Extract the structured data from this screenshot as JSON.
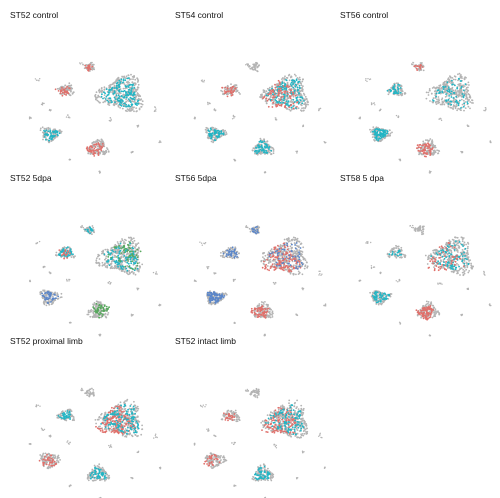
{
  "chart_data": {
    "type": "scatter",
    "layout": "facet grid, 3 columns",
    "axes": "hidden",
    "grid": false,
    "legend": "none",
    "colors": {
      "background_cells": "#b4b4b4",
      "group_red": "#e0706b",
      "group_teal": "#22b5c4",
      "group_blue": "#5b86c9",
      "group_green": "#57a85d"
    },
    "panels": [
      {
        "title": "ST52 control",
        "highlight": [
          {
            "cluster": "big",
            "color": "teal",
            "weight": 0.45
          },
          {
            "cluster": "left",
            "color": "red",
            "weight": 0.45
          },
          {
            "cluster": "lower_left",
            "color": "teal",
            "weight": 0.5
          },
          {
            "cluster": "lower_right",
            "color": "red",
            "weight": 0.45
          },
          {
            "cluster": "top_small",
            "color": "red",
            "weight": 0.5
          }
        ]
      },
      {
        "title": "ST54 control",
        "highlight": [
          {
            "cluster": "big",
            "color": "teal",
            "weight": 0.4
          },
          {
            "cluster": "big",
            "color": "red",
            "weight": 0.25
          },
          {
            "cluster": "left",
            "color": "red",
            "weight": 0.5
          },
          {
            "cluster": "lower_left",
            "color": "teal",
            "weight": 0.55
          },
          {
            "cluster": "lower_right",
            "color": "teal",
            "weight": 0.5
          }
        ]
      },
      {
        "title": "ST56 control",
        "highlight": [
          {
            "cluster": "big",
            "color": "teal",
            "weight": 0.2
          },
          {
            "cluster": "left",
            "color": "teal",
            "weight": 0.5
          },
          {
            "cluster": "lower_left",
            "color": "teal",
            "weight": 0.8
          },
          {
            "cluster": "lower_right",
            "color": "red",
            "weight": 0.5
          },
          {
            "cluster": "top_small",
            "color": "red",
            "weight": 0.35
          }
        ]
      },
      {
        "title": "ST52 5dpa",
        "highlight": [
          {
            "cluster": "big",
            "color": "teal",
            "weight": 0.3
          },
          {
            "cluster": "big",
            "color": "green",
            "weight": 0.15
          },
          {
            "cluster": "left",
            "color": "teal",
            "weight": 0.6
          },
          {
            "cluster": "left",
            "color": "red",
            "weight": 0.2
          },
          {
            "cluster": "lower_left",
            "color": "blue",
            "weight": 0.4
          },
          {
            "cluster": "lower_right",
            "color": "green",
            "weight": 0.45
          },
          {
            "cluster": "top_small",
            "color": "teal",
            "weight": 0.4
          }
        ]
      },
      {
        "title": "ST56 5dpa",
        "highlight": [
          {
            "cluster": "big",
            "color": "red",
            "weight": 0.4
          },
          {
            "cluster": "big",
            "color": "blue",
            "weight": 0.15
          },
          {
            "cluster": "left",
            "color": "blue",
            "weight": 0.45
          },
          {
            "cluster": "lower_left",
            "color": "blue",
            "weight": 0.85
          },
          {
            "cluster": "lower_right",
            "color": "red",
            "weight": 0.55
          },
          {
            "cluster": "top_small",
            "color": "blue",
            "weight": 0.4
          }
        ]
      },
      {
        "title": "ST58 5 dpa",
        "highlight": [
          {
            "cluster": "big",
            "color": "teal",
            "weight": 0.25
          },
          {
            "cluster": "big",
            "color": "red",
            "weight": 0.15
          },
          {
            "cluster": "left",
            "color": "teal",
            "weight": 0.2
          },
          {
            "cluster": "lower_left",
            "color": "teal",
            "weight": 0.45
          },
          {
            "cluster": "lower_right",
            "color": "red",
            "weight": 0.75
          }
        ]
      },
      {
        "title": "ST52 proximal limb",
        "highlight": [
          {
            "cluster": "big",
            "color": "red",
            "weight": 0.4
          },
          {
            "cluster": "big",
            "color": "teal",
            "weight": 0.35
          },
          {
            "cluster": "left",
            "color": "teal",
            "weight": 0.45
          },
          {
            "cluster": "lower_left",
            "color": "red",
            "weight": 0.35
          },
          {
            "cluster": "lower_right",
            "color": "teal",
            "weight": 0.4
          }
        ]
      },
      {
        "title": "ST52 intact limb",
        "highlight": [
          {
            "cluster": "big",
            "color": "red",
            "weight": 0.35
          },
          {
            "cluster": "big",
            "color": "teal",
            "weight": 0.3
          },
          {
            "cluster": "left",
            "color": "red",
            "weight": 0.35
          },
          {
            "cluster": "lower_left",
            "color": "red",
            "weight": 0.25
          },
          {
            "cluster": "lower_right",
            "color": "teal",
            "weight": 0.45
          }
        ]
      }
    ]
  }
}
